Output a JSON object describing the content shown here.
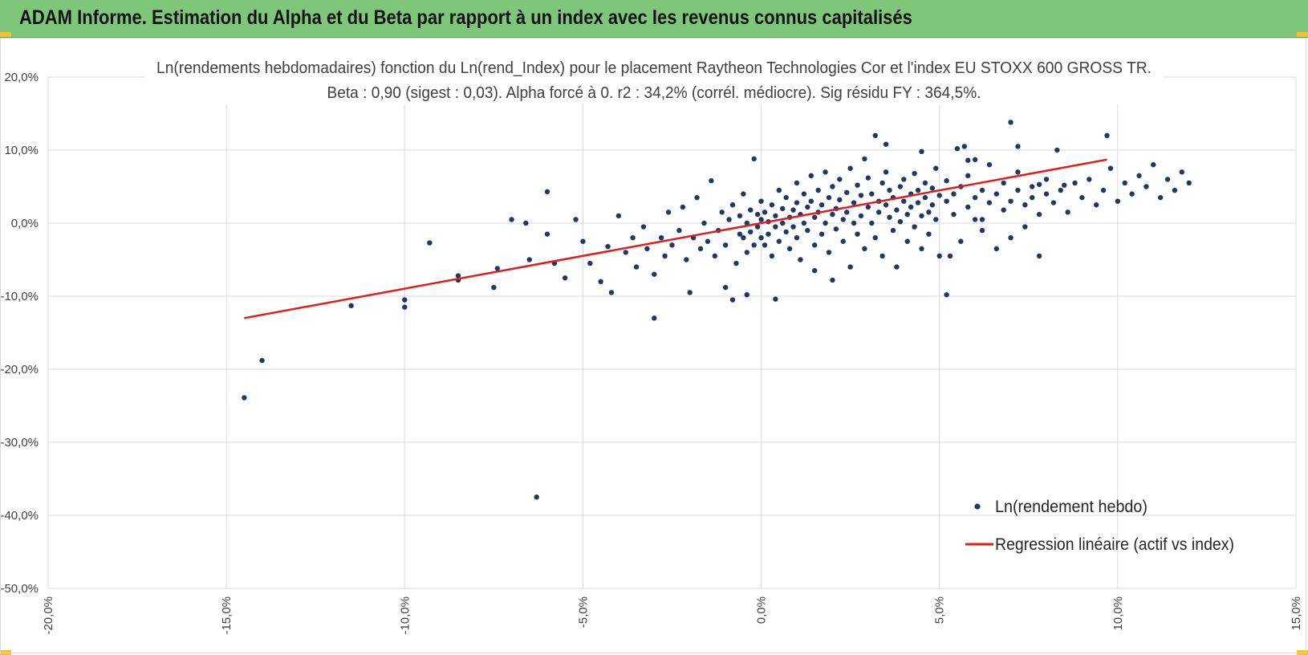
{
  "header": {
    "title": "ADAM Informe. Estimation du Alpha et du Beta par rapport à un index avec les revenus connus capitalisés"
  },
  "colors": {
    "header_bg": "#7dc67a",
    "accent_corner": "#f2c12e",
    "points": "#1f3864",
    "regression": "#e31b1b",
    "grid": "#d9d9d9"
  },
  "chart_data": {
    "type": "scatter",
    "title_line1": "Ln(rendements hebdomadaires) fonction du Ln(rend_Index) pour le placement Raytheon Technologies Cor et l'index EU STOXX 600 GROSS TR.",
    "title_line2": "Beta : 0,90 (sigest : 0,03).  Alpha forcé à 0. r2 : 34,2% (corrél. médiocre). Sig résidu FY : 364,5%.",
    "xlim": [
      -0.2,
      0.15
    ],
    "ylim": [
      -0.5,
      0.2
    ],
    "x_ticks": [
      -0.2,
      -0.15,
      -0.1,
      -0.05,
      0.0,
      0.05,
      0.1,
      0.15
    ],
    "x_tick_labels": [
      "-20,0%",
      "-15,0%",
      "-10,0%",
      "-5,0%",
      "0,0%",
      "5,0%",
      "10,0%",
      "15,0%"
    ],
    "y_ticks": [
      0.2,
      0.1,
      0.0,
      -0.1,
      -0.2,
      -0.3,
      -0.4,
      -0.5
    ],
    "y_tick_labels": [
      "20,0%",
      "10,0%",
      "0,0%",
      "-10,0%",
      "-20,0%",
      "-30,0%",
      "-40,0%",
      "-50,0%"
    ],
    "grid": true,
    "legend_position": "bottom-right",
    "series": [
      {
        "name": "Ln(rendement hebdo)",
        "kind": "scatter",
        "points": [
          [
            -0.145,
            -0.239
          ],
          [
            -0.14,
            -0.188
          ],
          [
            -0.115,
            -0.113
          ],
          [
            -0.1,
            -0.105
          ],
          [
            -0.1,
            -0.115
          ],
          [
            -0.093,
            -0.027
          ],
          [
            -0.085,
            -0.072
          ],
          [
            -0.085,
            -0.078
          ],
          [
            -0.075,
            -0.088
          ],
          [
            -0.074,
            -0.062
          ],
          [
            -0.07,
            0.005
          ],
          [
            -0.066,
            0.0
          ],
          [
            -0.065,
            -0.05
          ],
          [
            -0.063,
            -0.375
          ],
          [
            -0.06,
            0.043
          ],
          [
            -0.06,
            -0.015
          ],
          [
            -0.058,
            -0.055
          ],
          [
            -0.055,
            -0.075
          ],
          [
            -0.052,
            0.005
          ],
          [
            -0.05,
            -0.025
          ],
          [
            -0.048,
            -0.055
          ],
          [
            -0.045,
            -0.08
          ],
          [
            -0.043,
            -0.032
          ],
          [
            -0.042,
            -0.095
          ],
          [
            -0.04,
            0.01
          ],
          [
            -0.038,
            -0.04
          ],
          [
            -0.036,
            -0.02
          ],
          [
            -0.035,
            -0.06
          ],
          [
            -0.033,
            -0.005
          ],
          [
            -0.032,
            -0.035
          ],
          [
            -0.03,
            -0.13
          ],
          [
            -0.03,
            -0.07
          ],
          [
            -0.028,
            -0.02
          ],
          [
            -0.027,
            -0.045
          ],
          [
            -0.026,
            0.015
          ],
          [
            -0.025,
            -0.03
          ],
          [
            -0.023,
            -0.01
          ],
          [
            -0.022,
            0.022
          ],
          [
            -0.021,
            -0.05
          ],
          [
            -0.02,
            -0.095
          ],
          [
            -0.019,
            -0.02
          ],
          [
            -0.018,
            0.035
          ],
          [
            -0.017,
            -0.035
          ],
          [
            -0.016,
            0.0
          ],
          [
            -0.015,
            -0.025
          ],
          [
            -0.014,
            0.058
          ],
          [
            -0.013,
            -0.045
          ],
          [
            -0.012,
            -0.01
          ],
          [
            -0.011,
            0.015
          ],
          [
            -0.01,
            -0.088
          ],
          [
            -0.01,
            -0.03
          ],
          [
            -0.009,
            0.005
          ],
          [
            -0.008,
            0.025
          ],
          [
            -0.007,
            -0.055
          ],
          [
            -0.006,
            -0.015
          ],
          [
            -0.006,
            0.01
          ],
          [
            -0.005,
            -0.02
          ],
          [
            -0.005,
            0.04
          ],
          [
            -0.004,
            -0.04
          ],
          [
            -0.004,
            0.0
          ],
          [
            -0.003,
            -0.012
          ],
          [
            -0.003,
            0.018
          ],
          [
            -0.002,
            0.088
          ],
          [
            -0.002,
            -0.03
          ],
          [
            -0.001,
            -0.005
          ],
          [
            -0.001,
            0.012
          ],
          [
            0.0,
            -0.02
          ],
          [
            0.0,
            0.03
          ],
          [
            0.0,
            0.005
          ],
          [
            0.001,
            -0.03
          ],
          [
            0.001,
            0.015
          ],
          [
            0.002,
            0.002
          ],
          [
            0.002,
            -0.015
          ],
          [
            0.003,
            0.025
          ],
          [
            0.003,
            -0.045
          ],
          [
            0.004,
            0.01
          ],
          [
            0.004,
            -0.005
          ],
          [
            0.005,
            0.045
          ],
          [
            0.005,
            -0.025
          ],
          [
            0.006,
            0.02
          ],
          [
            0.006,
            0.0
          ],
          [
            0.007,
            -0.012
          ],
          [
            0.007,
            0.035
          ],
          [
            0.008,
            0.008
          ],
          [
            0.008,
            -0.035
          ],
          [
            0.009,
            0.018
          ],
          [
            0.009,
            -0.005
          ],
          [
            0.01,
            0.055
          ],
          [
            0.01,
            0.028
          ],
          [
            0.01,
            -0.02
          ],
          [
            0.011,
            0.012
          ],
          [
            0.011,
            -0.05
          ],
          [
            0.012,
            0.04
          ],
          [
            0.012,
            0.0
          ],
          [
            0.013,
            0.022
          ],
          [
            0.013,
            -0.01
          ],
          [
            0.014,
            0.065
          ],
          [
            0.014,
            0.03
          ],
          [
            0.015,
            0.008
          ],
          [
            0.015,
            -0.03
          ],
          [
            0.016,
            0.015
          ],
          [
            0.016,
            0.045
          ],
          [
            0.017,
            -0.015
          ],
          [
            0.017,
            0.025
          ],
          [
            0.018,
            0.0
          ],
          [
            0.018,
            0.07
          ],
          [
            0.019,
            0.035
          ],
          [
            0.019,
            -0.04
          ],
          [
            0.02,
            0.012
          ],
          [
            0.02,
            0.05
          ],
          [
            0.021,
            0.02
          ],
          [
            0.021,
            -0.008
          ],
          [
            0.022,
            0.032
          ],
          [
            0.022,
            0.06
          ],
          [
            0.023,
            0.005
          ],
          [
            0.023,
            -0.025
          ],
          [
            0.024,
            0.042
          ],
          [
            0.024,
            0.015
          ],
          [
            0.025,
            -0.06
          ],
          [
            0.025,
            0.075
          ],
          [
            0.026,
            0.028
          ],
          [
            0.026,
            0.0
          ],
          [
            0.027,
            0.052
          ],
          [
            0.027,
            -0.015
          ],
          [
            0.028,
            0.038
          ],
          [
            0.028,
            0.01
          ],
          [
            0.029,
            0.088
          ],
          [
            0.029,
            -0.035
          ],
          [
            0.03,
            0.022
          ],
          [
            0.03,
            0.062
          ],
          [
            0.031,
            0.0
          ],
          [
            0.031,
            0.04
          ],
          [
            0.032,
            -0.02
          ],
          [
            0.032,
            0.12
          ],
          [
            0.033,
            0.03
          ],
          [
            0.033,
            0.015
          ],
          [
            0.034,
            0.055
          ],
          [
            0.034,
            -0.045
          ],
          [
            0.035,
            0.025
          ],
          [
            0.035,
            0.07
          ],
          [
            0.036,
            0.008
          ],
          [
            0.036,
            0.045
          ],
          [
            0.037,
            -0.01
          ],
          [
            0.037,
            0.035
          ],
          [
            0.038,
            0.018
          ],
          [
            0.038,
            -0.06
          ],
          [
            0.039,
            0.05
          ],
          [
            0.039,
            0.002
          ],
          [
            0.04,
            0.03
          ],
          [
            0.04,
            0.06
          ],
          [
            0.041,
            0.012
          ],
          [
            0.041,
            -0.025
          ],
          [
            0.042,
            0.04
          ],
          [
            0.042,
            0.022
          ],
          [
            0.043,
            0.068
          ],
          [
            0.043,
            -0.005
          ],
          [
            0.044,
            0.045
          ],
          [
            0.044,
            0.028
          ],
          [
            0.045,
            -0.035
          ],
          [
            0.045,
            0.01
          ],
          [
            0.046,
            0.055
          ],
          [
            0.046,
            0.035
          ],
          [
            0.047,
            0.015
          ],
          [
            0.047,
            -0.015
          ],
          [
            0.048,
            0.048
          ],
          [
            0.048,
            0.025
          ],
          [
            0.049,
            0.075
          ],
          [
            0.049,
            0.005
          ],
          [
            0.05,
            0.038
          ],
          [
            0.05,
            -0.045
          ],
          [
            0.052,
            0.03
          ],
          [
            0.052,
            0.058
          ],
          [
            0.054,
            0.012
          ],
          [
            0.054,
            0.04
          ],
          [
            0.056,
            -0.025
          ],
          [
            0.056,
            0.05
          ],
          [
            0.058,
            0.022
          ],
          [
            0.058,
            0.065
          ],
          [
            0.06,
            0.035
          ],
          [
            0.06,
            0.005
          ],
          [
            0.062,
            0.045
          ],
          [
            0.062,
            -0.01
          ],
          [
            0.064,
            0.028
          ],
          [
            0.064,
            0.08
          ],
          [
            0.066,
            0.04
          ],
          [
            0.066,
            -0.035
          ],
          [
            0.068,
            0.018
          ],
          [
            0.068,
            0.055
          ],
          [
            0.07,
            0.03
          ],
          [
            0.07,
            -0.02
          ],
          [
            0.072,
            0.045
          ],
          [
            0.072,
            0.07
          ],
          [
            0.074,
            0.025
          ],
          [
            0.074,
            -0.005
          ],
          [
            0.076,
            0.05
          ],
          [
            0.076,
            0.035
          ],
          [
            0.078,
            0.012
          ],
          [
            0.078,
            -0.045
          ],
          [
            0.08,
            0.04
          ],
          [
            0.08,
            0.06
          ],
          [
            0.082,
            0.028
          ],
          [
            0.084,
            0.045
          ],
          [
            0.086,
            0.015
          ],
          [
            0.088,
            0.055
          ],
          [
            0.09,
            0.035
          ],
          [
            0.092,
            0.06
          ],
          [
            0.094,
            0.025
          ],
          [
            0.096,
            0.045
          ],
          [
            0.098,
            0.075
          ],
          [
            0.1,
            0.03
          ],
          [
            0.102,
            0.055
          ],
          [
            0.104,
            0.04
          ],
          [
            0.106,
            0.065
          ],
          [
            0.108,
            0.05
          ],
          [
            0.11,
            0.08
          ],
          [
            0.112,
            0.035
          ],
          [
            0.114,
            0.06
          ],
          [
            0.116,
            0.045
          ],
          [
            0.118,
            0.07
          ],
          [
            0.12,
            0.055
          ],
          [
            0.035,
            0.108
          ],
          [
            0.045,
            0.098
          ],
          [
            0.052,
            -0.098
          ],
          [
            0.055,
            0.102
          ],
          [
            0.057,
            0.105
          ],
          [
            0.06,
            0.087
          ],
          [
            0.062,
            0.005
          ],
          [
            0.07,
            0.138
          ],
          [
            0.072,
            0.105
          ],
          [
            0.078,
            0.053
          ],
          [
            0.083,
            0.1
          ],
          [
            0.085,
            0.052
          ],
          [
            0.097,
            0.12
          ],
          [
            0.053,
            -0.045
          ],
          [
            0.058,
            0.086
          ],
          [
            -0.004,
            -0.098
          ],
          [
            0.004,
            -0.104
          ],
          [
            -0.008,
            -0.105
          ],
          [
            0.02,
            -0.078
          ],
          [
            0.015,
            -0.065
          ]
        ]
      },
      {
        "name": "Regression linéaire (actif vs index)",
        "kind": "line",
        "x": [
          -0.145,
          0.097
        ],
        "y": [
          -0.13,
          0.087
        ]
      }
    ]
  }
}
